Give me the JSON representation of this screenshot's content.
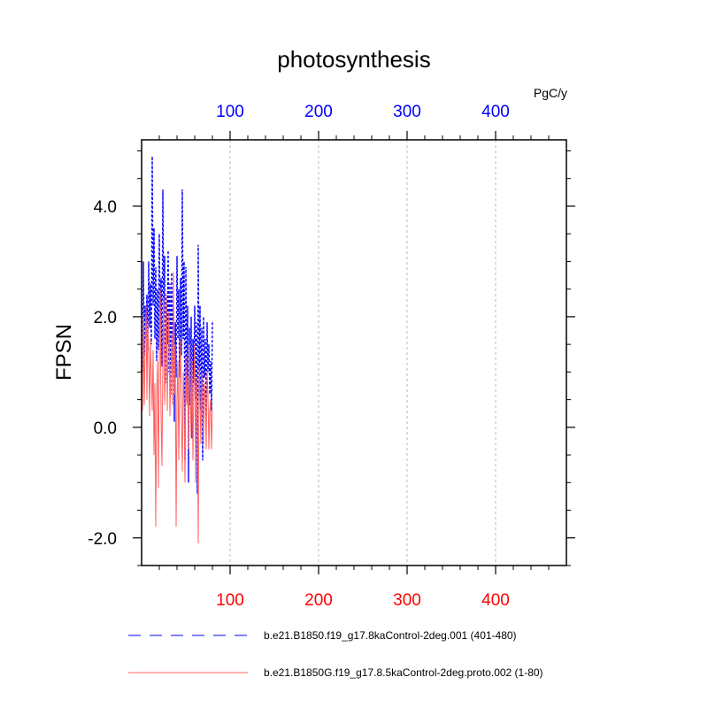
{
  "chart_data": {
    "type": "line",
    "title": "photosynthesis",
    "ylabel": "FPSN",
    "units": "PgC/y",
    "xlim": [
      0,
      480
    ],
    "ylim": [
      -2.5,
      5.2
    ],
    "grid": "vertical-dashed",
    "x_ticks": [
      "100",
      "200",
      "300",
      "400"
    ],
    "y_ticks": [
      "-2.0",
      "0.0",
      "2.0",
      "4.0"
    ],
    "legend_position": "bottom",
    "series": [
      {
        "name": "b.e21.B1850.f19_g17.8kaControl-2deg.001 (401-480)",
        "color": "#0000ff",
        "style": "dashed",
        "axis": "top",
        "x": [
          1,
          2,
          3,
          4,
          5,
          6,
          7,
          8,
          9,
          10,
          11,
          12,
          13,
          14,
          15,
          16,
          17,
          18,
          19,
          20,
          21,
          22,
          23,
          24,
          25,
          26,
          27,
          28,
          29,
          30,
          31,
          32,
          33,
          34,
          35,
          36,
          37,
          38,
          39,
          40,
          41,
          42,
          43,
          44,
          45,
          46,
          47,
          48,
          49,
          50,
          51,
          52,
          53,
          54,
          55,
          56,
          57,
          58,
          59,
          60,
          61,
          62,
          63,
          64,
          65,
          66,
          67,
          68,
          69,
          70,
          71,
          72,
          73,
          74,
          75,
          76,
          77,
          78,
          79,
          80
        ],
        "y": [
          1.0,
          3.0,
          1.3,
          2.2,
          1.6,
          2.4,
          1.4,
          3.0,
          1.8,
          2.6,
          1.5,
          4.9,
          2.2,
          3.6,
          1.6,
          2.9,
          1.2,
          2.5,
          1.4,
          3.5,
          1.8,
          2.7,
          1.1,
          4.3,
          2.0,
          3.1,
          0.8,
          2.4,
          1.5,
          3.2,
          1.0,
          2.6,
          0.6,
          2.8,
          1.2,
          2.2,
          0.1,
          1.9,
          0.9,
          3.1,
          1.6,
          2.5,
          0.9,
          2.7,
          1.3,
          4.3,
          1.6,
          3.0,
          -0.6,
          2.9,
          0.5,
          2.2,
          -1.0,
          1.8,
          0.4,
          2.0,
          -0.2,
          1.6,
          0.8,
          2.2,
          0.5,
          1.9,
          -1.2,
          3.3,
          0.6,
          2.2,
          0.3,
          1.8,
          -0.6,
          2.0,
          0.9,
          1.6,
          0.2,
          1.9,
          1.0,
          1.5,
          0.6,
          1.2,
          0.3,
          1.9
        ]
      },
      {
        "name": "b.e21.B1850G.f19_g17.8.5kaControl-2deg.proto.002 (1-80)",
        "color": "#ff6060",
        "style": "solid",
        "axis": "bottom",
        "x": [
          1,
          2,
          3,
          4,
          5,
          6,
          7,
          8,
          9,
          10,
          11,
          12,
          13,
          14,
          15,
          16,
          17,
          18,
          19,
          20,
          21,
          22,
          23,
          24,
          25,
          26,
          27,
          28,
          29,
          30,
          31,
          32,
          33,
          34,
          35,
          36,
          37,
          38,
          39,
          40,
          41,
          42,
          43,
          44,
          45,
          46,
          47,
          48,
          49,
          50,
          51,
          52,
          53,
          54,
          55,
          56,
          57,
          58,
          59,
          60,
          61,
          62,
          63,
          64,
          65,
          66,
          67,
          68,
          69,
          70,
          71,
          72,
          73,
          74,
          75,
          76,
          77,
          78,
          79,
          80
        ],
        "y": [
          0.3,
          2.0,
          0.4,
          1.5,
          2.2,
          0.5,
          1.9,
          1.3,
          0.2,
          1.6,
          0.9,
          0.3,
          1.4,
          -0.5,
          0.8,
          -1.8,
          0.6,
          1.2,
          -1.1,
          1.4,
          2.5,
          0.2,
          -0.7,
          1.2,
          2.3,
          0.4,
          1.1,
          2.4,
          0.3,
          1.5,
          2.1,
          0.2,
          0.9,
          1.7,
          0.4,
          2.8,
          0.6,
          1.5,
          -1.8,
          0.5,
          1.2,
          -0.6,
          0.8,
          1.6,
          0.2,
          -0.8,
          1.0,
          0.5,
          -1.0,
          1.3,
          0.4,
          0.9,
          -0.4,
          1.5,
          0.7,
          -0.2,
          1.2,
          -0.6,
          0.8,
          1.5,
          -1.0,
          0.9,
          0.3,
          -2.1,
          1.1,
          0.5,
          -0.3,
          1.0,
          0.2,
          -0.3,
          0.8,
          0.5,
          -0.4,
          1.0,
          0.6,
          -0.4,
          0.3,
          0.5,
          -0.4,
          0.3
        ]
      }
    ]
  }
}
